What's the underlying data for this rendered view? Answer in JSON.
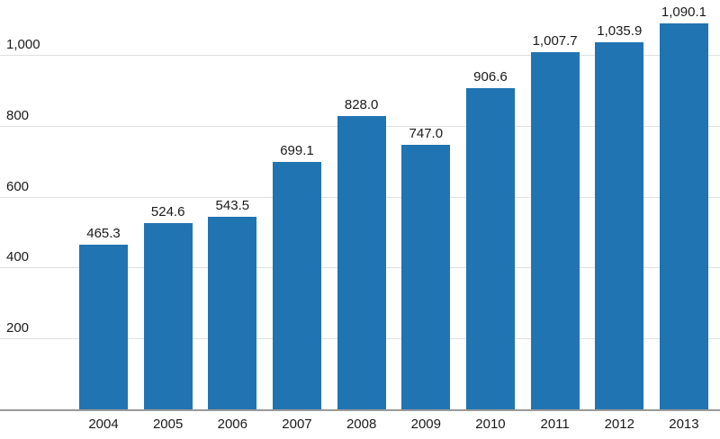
{
  "chart_data": {
    "type": "bar",
    "title": "",
    "xlabel": "",
    "ylabel": "",
    "categories": [
      "2004",
      "2005",
      "2006",
      "2007",
      "2008",
      "2009",
      "2010",
      "2011",
      "2012",
      "2013"
    ],
    "values": [
      465.3,
      524.6,
      543.5,
      699.1,
      828.0,
      747.0,
      906.6,
      1007.7,
      1035.9,
      1090.1
    ],
    "value_labels": [
      "465.3",
      "524.6",
      "543.5",
      "699.1",
      "828.0",
      "747.0",
      "906.6",
      "1,007.7",
      "1,035.9",
      "1,090.1"
    ],
    "yticks": [
      200,
      400,
      600,
      800,
      1000
    ],
    "ytick_labels": [
      "200",
      "400",
      "600",
      "800",
      "1,000"
    ],
    "ylim": [
      0,
      1155
    ],
    "grid": "horizontal-only",
    "legend": "none",
    "colors": {
      "bar_fill": "#2074B2",
      "label_text": "#1a1a1a",
      "tick_text": "#1a1a1a",
      "gridline": "#e0e0e0",
      "axis_line": "#999999",
      "background": "#ffffff"
    }
  }
}
